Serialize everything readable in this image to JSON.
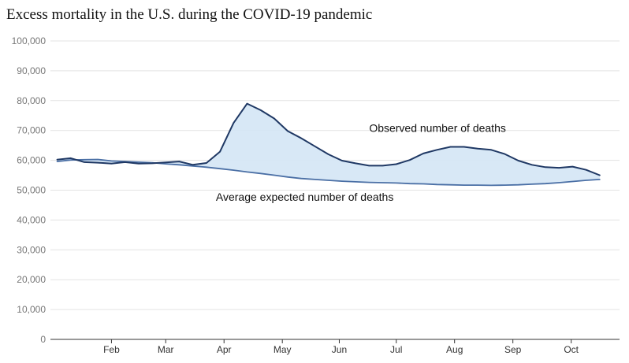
{
  "chart_data": {
    "type": "line",
    "title": "Excess mortality in the U.S. during the COVID-19 pandemic",
    "xlabel": "",
    "ylabel": "",
    "ylim": [
      0,
      100000
    ],
    "yticks": [
      0,
      10000,
      20000,
      30000,
      40000,
      50000,
      60000,
      70000,
      80000,
      90000,
      100000
    ],
    "ytick_labels": [
      "0",
      "10,000",
      "20,000",
      "30,000",
      "40,000",
      "50,000",
      "60,000",
      "70,000",
      "80,000",
      "90,000",
      "100,000"
    ],
    "week_range": [
      0,
      41.5
    ],
    "x_month_ticks": [
      {
        "label": "Feb",
        "week": 4.5
      },
      {
        "label": "Mar",
        "week": 8.5
      },
      {
        "label": "Apr",
        "week": 12.8
      },
      {
        "label": "May",
        "week": 17.1
      },
      {
        "label": "Jun",
        "week": 21.3
      },
      {
        "label": "Jul",
        "week": 25.5
      },
      {
        "label": "Aug",
        "week": 29.8
      },
      {
        "label": "Sep",
        "week": 34.1
      },
      {
        "label": "Oct",
        "week": 38.4
      }
    ],
    "series": [
      {
        "name": "Observed number of deaths",
        "color": "#1f3864",
        "values": [
          [
            0.5,
            60200
          ],
          [
            1.5,
            60700
          ],
          [
            2.5,
            59400
          ],
          [
            3.5,
            59200
          ],
          [
            4.5,
            58900
          ],
          [
            5.5,
            59400
          ],
          [
            6.5,
            58900
          ],
          [
            7.5,
            59000
          ],
          [
            8.5,
            59300
          ],
          [
            9.5,
            59600
          ],
          [
            10.5,
            58500
          ],
          [
            11.5,
            59100
          ],
          [
            12.5,
            62900
          ],
          [
            13.5,
            72500
          ],
          [
            14.5,
            79000
          ],
          [
            15.5,
            76800
          ],
          [
            16.5,
            74000
          ],
          [
            17.5,
            69800
          ],
          [
            18.5,
            67400
          ],
          [
            19.5,
            64700
          ],
          [
            20.5,
            62000
          ],
          [
            21.5,
            59900
          ],
          [
            22.5,
            59000
          ],
          [
            23.5,
            58200
          ],
          [
            24.5,
            58200
          ],
          [
            25.5,
            58700
          ],
          [
            26.5,
            60100
          ],
          [
            27.5,
            62300
          ],
          [
            28.5,
            63500
          ],
          [
            29.5,
            64500
          ],
          [
            30.5,
            64500
          ],
          [
            31.5,
            63900
          ],
          [
            32.5,
            63500
          ],
          [
            33.5,
            62100
          ],
          [
            34.5,
            59900
          ],
          [
            35.5,
            58500
          ],
          [
            36.5,
            57700
          ],
          [
            37.5,
            57500
          ],
          [
            38.5,
            57900
          ],
          [
            39.5,
            56800
          ],
          [
            40.5,
            55000
          ]
        ]
      },
      {
        "name": "Average expected number of deaths",
        "color": "#4a6fa5",
        "values": [
          [
            0.5,
            59600
          ],
          [
            1.5,
            60100
          ],
          [
            2.5,
            60200
          ],
          [
            3.5,
            60300
          ],
          [
            4.5,
            59800
          ],
          [
            5.5,
            59600
          ],
          [
            6.5,
            59400
          ],
          [
            7.5,
            59200
          ],
          [
            8.5,
            58800
          ],
          [
            9.5,
            58500
          ],
          [
            10.5,
            58100
          ],
          [
            11.5,
            57700
          ],
          [
            12.5,
            57200
          ],
          [
            13.5,
            56700
          ],
          [
            14.5,
            56100
          ],
          [
            15.5,
            55600
          ],
          [
            16.5,
            55000
          ],
          [
            17.5,
            54400
          ],
          [
            18.5,
            53900
          ],
          [
            19.5,
            53600
          ],
          [
            20.5,
            53300
          ],
          [
            21.5,
            53000
          ],
          [
            22.5,
            52800
          ],
          [
            23.5,
            52600
          ],
          [
            24.5,
            52500
          ],
          [
            25.5,
            52400
          ],
          [
            26.5,
            52200
          ],
          [
            27.5,
            52100
          ],
          [
            28.5,
            51900
          ],
          [
            29.5,
            51800
          ],
          [
            30.5,
            51700
          ],
          [
            31.5,
            51700
          ],
          [
            32.5,
            51600
          ],
          [
            33.5,
            51700
          ],
          [
            34.5,
            51800
          ],
          [
            35.5,
            52000
          ],
          [
            36.5,
            52200
          ],
          [
            37.5,
            52500
          ],
          [
            38.5,
            52900
          ],
          [
            39.5,
            53300
          ],
          [
            40.5,
            53600
          ]
        ]
      }
    ],
    "fill_between": {
      "color": "#d4e6f5",
      "opacity": 0.9
    },
    "annotations": [
      {
        "text": "Observed number of deaths",
        "series": 0,
        "week": 23.5,
        "value": 69500
      },
      {
        "text": "Average expected number of deaths",
        "series": 1,
        "week": 12.2,
        "value": 46500
      }
    ],
    "grid": "horizontal",
    "legend": "none"
  }
}
